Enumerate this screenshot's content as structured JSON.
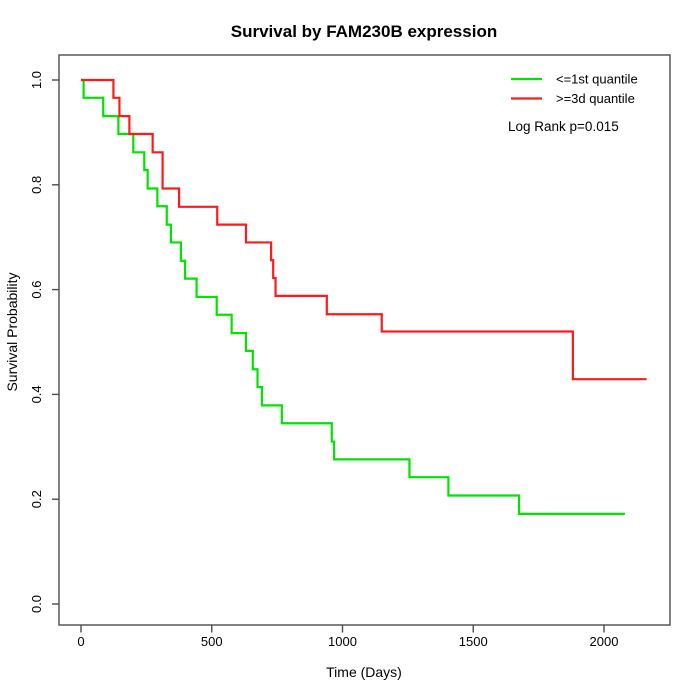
{
  "chart_data": {
    "type": "line",
    "subtype": "kaplan-meier-step",
    "title": "Survival by FAM230B expression",
    "xlabel": "Time (Days)",
    "ylabel": "Survival Probability",
    "xlim": [
      0,
      2250
    ],
    "ylim": [
      0.0,
      1.0
    ],
    "grid": false,
    "legend_position": "top-right",
    "annotation": "Log Rank p=0.015",
    "x_ticks": [
      0,
      500,
      1000,
      1500,
      2000
    ],
    "x_tick_labels": [
      "0",
      "500",
      "1000",
      "1500",
      "2000"
    ],
    "y_ticks": [
      0.0,
      0.2,
      0.4,
      0.6,
      0.8,
      1.0
    ],
    "y_tick_labels": [
      "0.0",
      "0.2",
      "0.4",
      "0.6",
      "0.8",
      "1.0"
    ],
    "series": [
      {
        "name": "<=1st quantile",
        "color": "#00e400",
        "end_time": 2080,
        "steps": [
          [
            0,
            1.0
          ],
          [
            10,
            0.966
          ],
          [
            85,
            0.931
          ],
          [
            143,
            0.897
          ],
          [
            200,
            0.862
          ],
          [
            242,
            0.828
          ],
          [
            255,
            0.793
          ],
          [
            292,
            0.759
          ],
          [
            328,
            0.724
          ],
          [
            344,
            0.69
          ],
          [
            382,
            0.655
          ],
          [
            398,
            0.621
          ],
          [
            442,
            0.586
          ],
          [
            519,
            0.552
          ],
          [
            576,
            0.517
          ],
          [
            631,
            0.483
          ],
          [
            657,
            0.448
          ],
          [
            675,
            0.414
          ],
          [
            692,
            0.379
          ],
          [
            768,
            0.345
          ],
          [
            959,
            0.31
          ],
          [
            968,
            0.276
          ],
          [
            1256,
            0.242
          ],
          [
            1405,
            0.207
          ],
          [
            1675,
            0.172
          ]
        ]
      },
      {
        "name": ">=3d quantile",
        "color": "#ff1a1a",
        "end_time": 2163,
        "steps": [
          [
            0,
            1.0
          ],
          [
            124,
            0.966
          ],
          [
            147,
            0.931
          ],
          [
            185,
            0.897
          ],
          [
            274,
            0.862
          ],
          [
            312,
            0.793
          ],
          [
            375,
            0.758
          ],
          [
            521,
            0.724
          ],
          [
            631,
            0.69
          ],
          [
            727,
            0.656
          ],
          [
            735,
            0.622
          ],
          [
            744,
            0.588
          ],
          [
            940,
            0.553
          ],
          [
            1150,
            0.52
          ],
          [
            1881,
            0.429
          ]
        ]
      }
    ]
  }
}
